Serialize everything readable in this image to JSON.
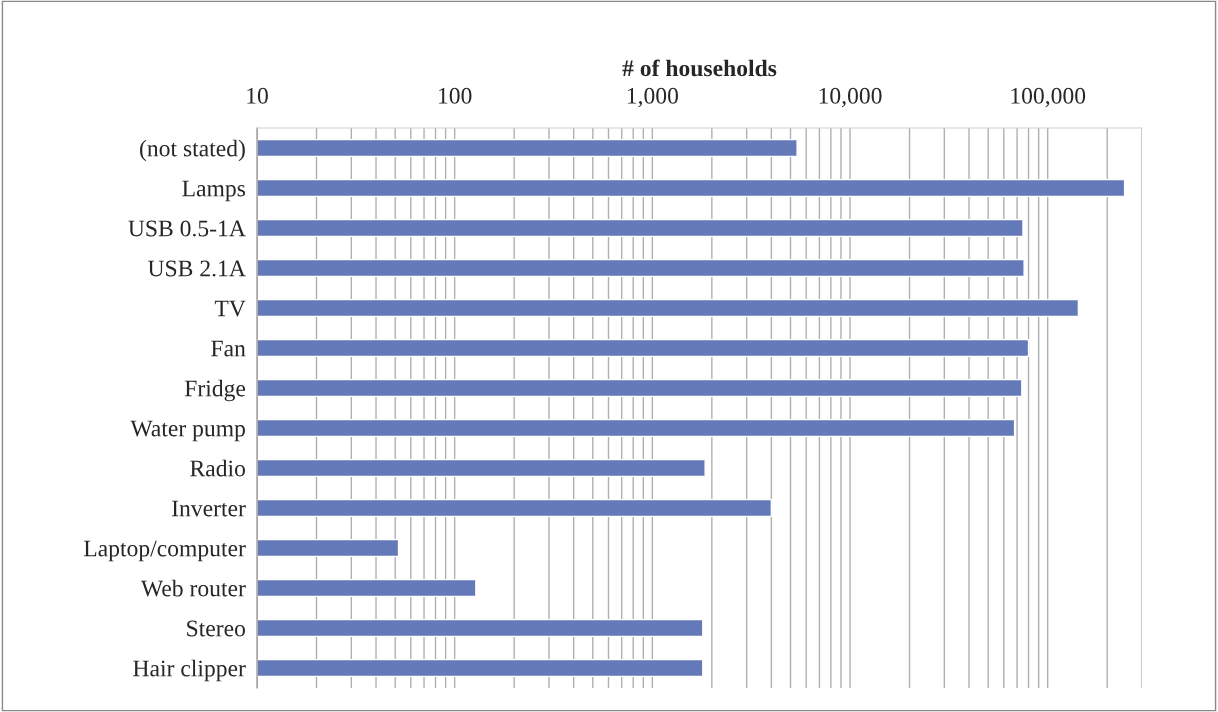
{
  "chart_data": {
    "type": "bar",
    "orientation": "horizontal",
    "log": "x",
    "xlabel": "# of households",
    "categories": [
      "(not stated)",
      "Lamps",
      "USB 0.5-1A",
      "USB 2.1A",
      "TV",
      "Fan",
      "Fridge",
      "Water pump",
      "Radio",
      "Inverter",
      "Laptop/computer",
      "Web router",
      "Stereo",
      "Hair clipper"
    ],
    "values": [
      5400,
      245000,
      75000,
      76000,
      143000,
      80000,
      74000,
      68000,
      1850,
      4000,
      52,
      128,
      1800,
      1800
    ],
    "color": "#6479b8",
    "xlim": [
      10,
      300000
    ],
    "xticks": [
      10,
      100,
      {
        "value": 1000,
        "label": "1,000"
      },
      {
        "value": 10000,
        "label": "10,000"
      },
      {
        "value": 100000,
        "label": "100,000"
      }
    ],
    "grid": "x",
    "legend": false
  }
}
